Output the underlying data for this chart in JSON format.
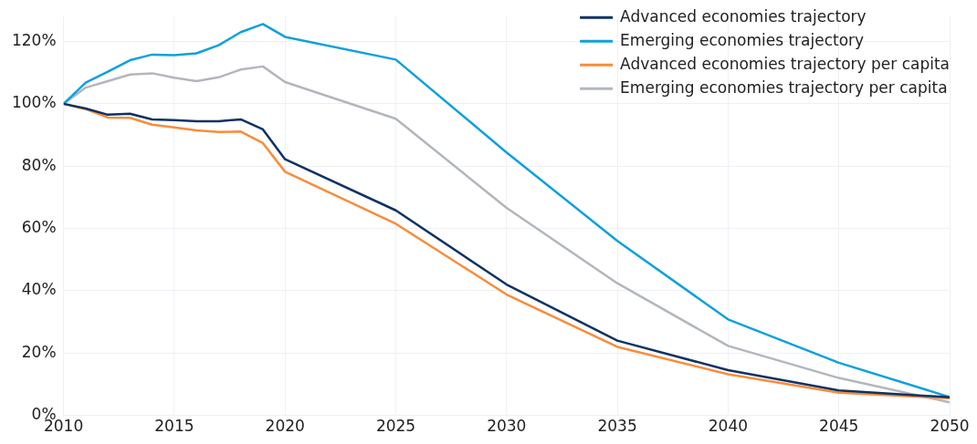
{
  "chart_data": {
    "type": "line",
    "x": [
      2010,
      2011,
      2012,
      2013,
      2014,
      2015,
      2016,
      2017,
      2018,
      2019,
      2020,
      2025,
      2030,
      2035,
      2040,
      2045,
      2050
    ],
    "series": [
      {
        "name": "Advanced economies trajectory",
        "color": "#0d3263",
        "values": [
          100,
          98.5,
          96.5,
          96.8,
          95,
          94.8,
          94.4,
          94.4,
          95,
          91.8,
          82.2,
          65.8,
          42,
          24,
          14.5,
          8,
          5.8
        ]
      },
      {
        "name": "Emerging economies trajectory",
        "color": "#0fa0dc",
        "values": [
          100,
          106.8,
          110.3,
          114,
          115.8,
          115.6,
          116.2,
          118.8,
          123,
          125.6,
          121.5,
          114.2,
          84.4,
          56,
          30.8,
          16.9,
          5.9
        ]
      },
      {
        "name": "Advanced economies trajectory per capita",
        "color": "#f98c3a",
        "values": [
          100,
          98.3,
          95.6,
          95.5,
          93.3,
          92.4,
          91.5,
          91,
          91.1,
          87.4,
          78.2,
          61.5,
          38.8,
          22,
          13.2,
          7.3,
          5.5
        ]
      },
      {
        "name": "Emerging economies trajectory per capita",
        "color": "#b2b6bd",
        "values": [
          100,
          105.2,
          107.3,
          109.4,
          109.8,
          108.4,
          107.3,
          108.5,
          111,
          112,
          107,
          95.2,
          66.6,
          42.4,
          22.3,
          12,
          4.2
        ]
      }
    ],
    "xlim": [
      2010,
      2050
    ],
    "xticks": [
      2010,
      2015,
      2020,
      2025,
      2030,
      2035,
      2040,
      2045,
      2050
    ],
    "ylim": [
      0,
      128
    ],
    "yticks": [
      {
        "value": 0,
        "label": "0%"
      },
      {
        "value": 20,
        "label": "20%"
      },
      {
        "value": 40,
        "label": "40%"
      },
      {
        "value": 60,
        "label": "60%"
      },
      {
        "value": 80,
        "label": "80%"
      },
      {
        "value": 100,
        "label": "100%"
      },
      {
        "value": 120,
        "label": "120%"
      }
    ],
    "grid": true,
    "legend": "top right",
    "marker": "none",
    "line_style": "solid"
  }
}
